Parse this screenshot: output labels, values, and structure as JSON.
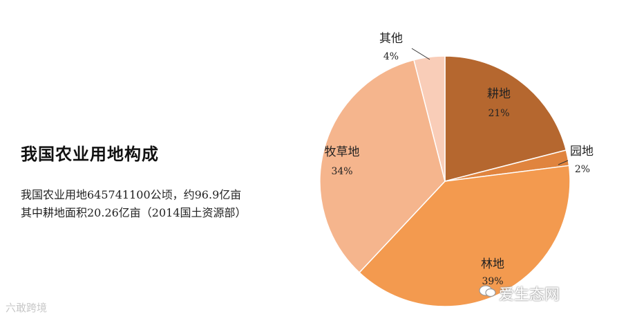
{
  "chart_data": {
    "type": "pie",
    "title": "我国农业用地构成",
    "description_lines": [
      "我国农业用地645741100公顷，约96.9亿亩",
      "其中耕地面积20.26亿亩（2014国土资源部）"
    ],
    "slices": [
      {
        "label": "耕地",
        "pct_text": "21%",
        "value": 21,
        "color": "#b5672f"
      },
      {
        "label": "园地",
        "pct_text": "2%",
        "value": 2,
        "color": "#e0843e"
      },
      {
        "label": "林地",
        "pct_text": "39%",
        "value": 39,
        "color": "#f39a4f"
      },
      {
        "label": "牧草地",
        "pct_text": "34%",
        "value": 34,
        "color": "#f5b58d"
      },
      {
        "label": "其他",
        "pct_text": "4%",
        "value": 4,
        "color": "#f9cdb8"
      }
    ]
  },
  "watermarks": {
    "left": "六敢跨境",
    "right": "爱生态网"
  }
}
